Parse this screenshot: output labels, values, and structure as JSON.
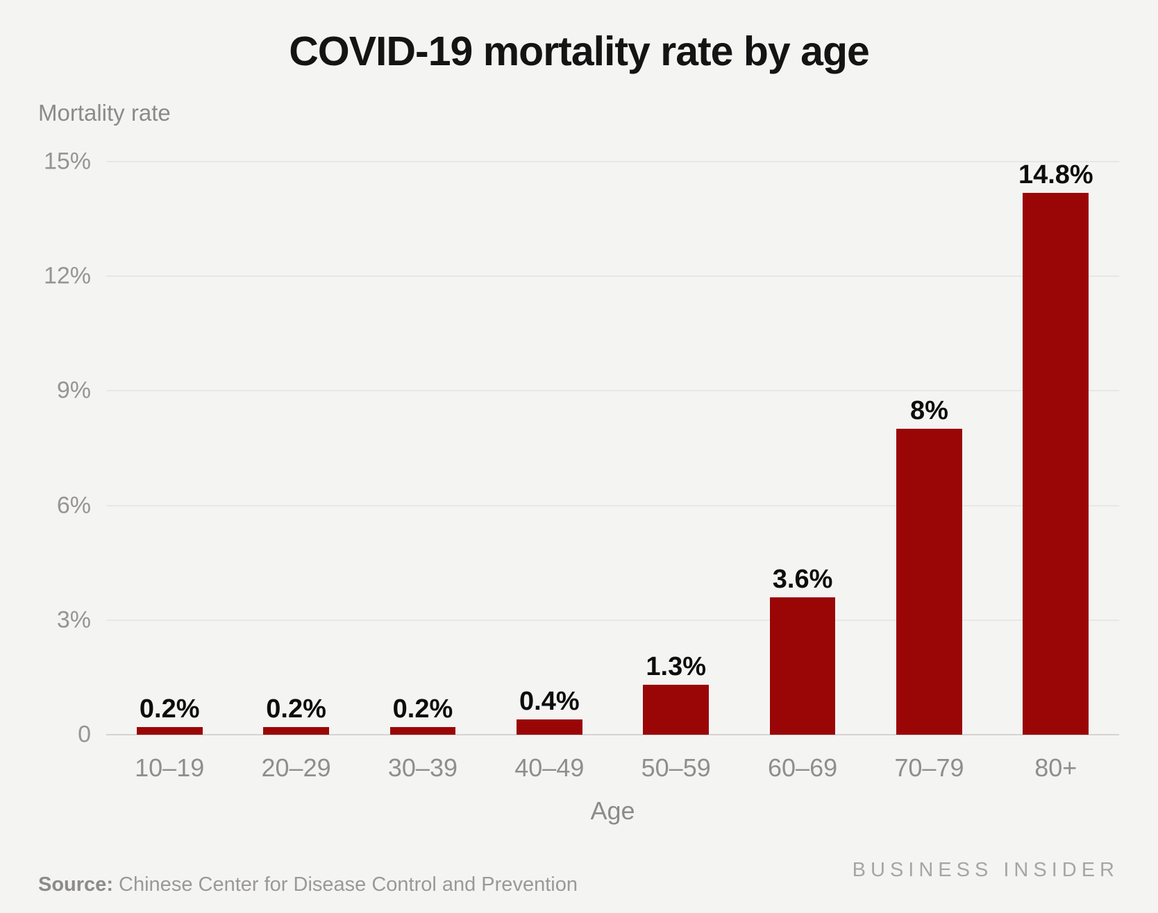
{
  "chart_data": {
    "type": "bar",
    "title": "COVID-19 mortality rate by age",
    "ylabel": "Mortality rate",
    "xlabel": "Age",
    "categories": [
      "10–19",
      "20–29",
      "30–39",
      "40–49",
      "50–59",
      "60–69",
      "70–79",
      "80+"
    ],
    "values": [
      0.2,
      0.2,
      0.2,
      0.4,
      1.3,
      3.6,
      8,
      14.8
    ],
    "value_labels": [
      "0.2%",
      "0.2%",
      "0.2%",
      "0.4%",
      "1.3%",
      "3.6%",
      "8%",
      "14.8%"
    ],
    "ylim": [
      0,
      15
    ],
    "yticks": [
      {
        "label": "15%",
        "value": 15
      },
      {
        "label": "12%",
        "value": 12
      },
      {
        "label": "9%",
        "value": 9
      },
      {
        "label": "6%",
        "value": 6
      },
      {
        "label": "3%",
        "value": 3
      },
      {
        "label": "0",
        "value": 0
      }
    ],
    "grid": true,
    "legend": null,
    "bar_color": "#9a0606",
    "background_color": "#f4f4f3",
    "gridline_color": "#e8e7e5",
    "baseline_color": "#d5d4d2"
  },
  "footer": {
    "source_prefix": "Source:",
    "source_text": " Chinese Center for Disease Control and Prevention",
    "brand": "BUSINESS INSIDER"
  }
}
